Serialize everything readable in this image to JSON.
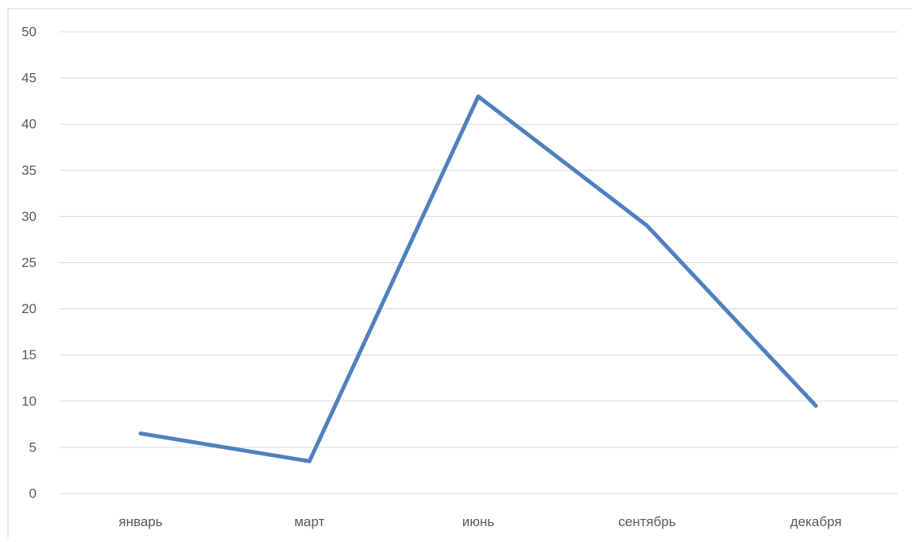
{
  "chart_data": {
    "type": "line",
    "title": "",
    "xlabel": "",
    "ylabel": "",
    "categories": [
      "январь",
      "март",
      "июнь",
      "сентябрь",
      "декабря"
    ],
    "series": [
      {
        "values": [
          6.5,
          3.5,
          43,
          29,
          9.5
        ],
        "color": "#4f81bd"
      }
    ],
    "ylim": [
      0,
      50
    ],
    "yticks": [
      0,
      5,
      10,
      15,
      20,
      25,
      30,
      35,
      40,
      45,
      50
    ],
    "grid": true,
    "legend": "none"
  },
  "colors": {
    "gridline": "#d9d9d9",
    "tick_text": "#595959",
    "frame": "#d0d0d0"
  }
}
